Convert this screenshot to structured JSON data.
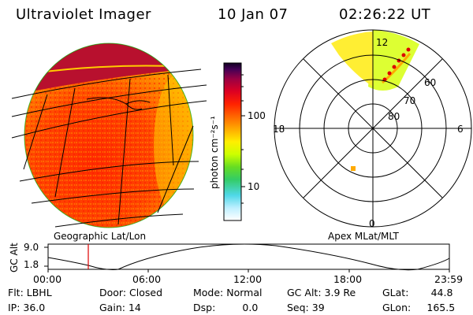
{
  "header": {
    "title": "Ultraviolet Imager",
    "date": "10 Jan 07",
    "time": "02:26:22 UT"
  },
  "colorbar": {
    "unit_label": "photon cm⁻²s⁻¹",
    "ticks": [
      "100",
      "10"
    ],
    "stops": [
      "#ffffff",
      "#bfefff",
      "#4fd8e8",
      "#33cc66",
      "#66dd22",
      "#ccff00",
      "#ffee00",
      "#ffaa00",
      "#ff6600",
      "#ff2200",
      "#dd0022",
      "#990044",
      "#440055",
      "#110022"
    ]
  },
  "left_panel": {
    "label": "Geographic Lat/Lon"
  },
  "right_panel": {
    "label": "Apex MLat/MLT",
    "mlt_labels": {
      "top": "12",
      "left": "18",
      "right": "6",
      "bottom": "0"
    },
    "lat_labels": [
      "60",
      "70",
      "80"
    ]
  },
  "timeline": {
    "ylabel": "GC Alt",
    "yticks": [
      "9.0",
      "1.8"
    ],
    "xticks": [
      "00:00",
      "06:00",
      "12:00",
      "18:00",
      "23:59"
    ],
    "marker_color": "#dd0000"
  },
  "info": [
    [
      {
        "k": "Flt:",
        "v": "LBHL"
      },
      {
        "k": "Door:",
        "v": "Closed"
      },
      {
        "k": "Mode:",
        "v": "Normal"
      },
      {
        "k": "GC Alt:",
        "v": "3.9 Re"
      },
      {
        "k": "GLat:",
        "v": "44.8"
      }
    ],
    [
      {
        "k": "IP:",
        "v": "36.0"
      },
      {
        "k": "Gain:",
        "v": "14"
      },
      {
        "k": "Dsp:",
        "v": "0.0"
      },
      {
        "k": "Seq:",
        "v": "39"
      },
      {
        "k": "GLon:",
        "v": "165.5"
      }
    ]
  ]
}
